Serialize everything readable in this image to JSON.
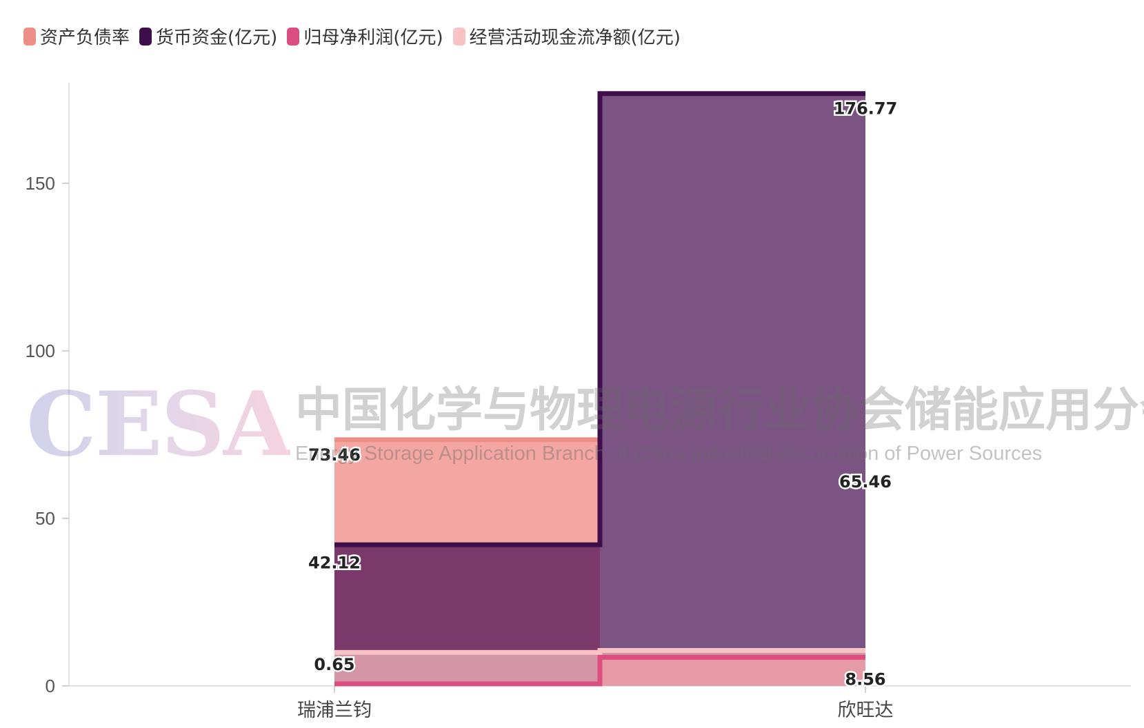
{
  "legend": [
    {
      "label": "资产负债率",
      "color": "#ee8f86"
    },
    {
      "label": "货币资金(亿元)",
      "color": "#3f0f4c"
    },
    {
      "label": "归母净利润(亿元)",
      "color": "#dc4e82"
    },
    {
      "label": "经营活动现金流净额(亿元)",
      "color": "#f7c3c5"
    }
  ],
  "watermark": {
    "logo": "CESA",
    "cn": "中国化学与物理电源行业协会储能应用分会",
    "en": "Energy Storage Application Branch of China Industrial Association of Power Sources"
  },
  "chart_data": {
    "type": "area",
    "step": true,
    "categories": [
      "瑞浦兰钧",
      "欣旺达"
    ],
    "series": [
      {
        "name": "资产负债率",
        "values": [
          73.46,
          65.46
        ],
        "color": "#ee8f86",
        "fill": "#f4a7a2"
      },
      {
        "name": "货币资金(亿元)",
        "values": [
          42.12,
          176.77
        ],
        "color": "#3f0f4c",
        "fill": "#7a396a",
        "fill_alt": "#7b5484"
      },
      {
        "name": "归母净利润(亿元)",
        "values": [
          0.65,
          8.56
        ],
        "color": "#dc4e82",
        "fill": "#e69aa6"
      },
      {
        "name": "经营活动现金流净额(亿元)",
        "values": [
          10,
          10.6
        ],
        "color": "#f7c3c5",
        "fill": "#d496a6"
      }
    ],
    "data_labels": [
      {
        "series": 0,
        "index": 0,
        "text": "73.46"
      },
      {
        "series": 0,
        "index": 1,
        "text": "65.46"
      },
      {
        "series": 1,
        "index": 0,
        "text": "42.12"
      },
      {
        "series": 1,
        "index": 1,
        "text": "176.77"
      },
      {
        "series": 2,
        "index": 0,
        "text": "0.65"
      },
      {
        "series": 2,
        "index": 1,
        "text": "8.56"
      }
    ],
    "yticks": [
      0,
      50,
      100,
      150
    ],
    "ylim": [
      0,
      180
    ],
    "grid": false,
    "legend_position": "top-left"
  }
}
